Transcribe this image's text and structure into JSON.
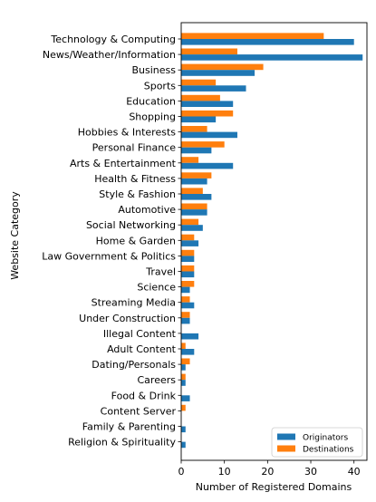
{
  "chart_data": {
    "type": "bar",
    "orientation": "horizontal",
    "xlabel": "Number of Registered Domains",
    "ylabel": "Website Category",
    "xlim": [
      0,
      43
    ],
    "xticks": [
      0,
      10,
      20,
      30,
      40
    ],
    "grid": false,
    "legend": {
      "position": "lower right"
    },
    "categories": [
      "Technology & Computing",
      "News/Weather/Information",
      "Business",
      "Sports",
      "Education",
      "Shopping",
      "Hobbies & Interests",
      "Personal Finance",
      "Arts & Entertainment",
      "Health & Fitness",
      "Style & Fashion",
      "Automotive",
      "Social Networking",
      "Home & Garden",
      "Law Government & Politics",
      "Travel",
      "Science",
      "Streaming Media",
      "Under Construction",
      "Illegal Content",
      "Adult Content",
      "Dating/Personals",
      "Careers",
      "Food & Drink",
      "Content Server",
      "Family & Parenting",
      "Religion & Spirituality"
    ],
    "series": [
      {
        "name": "Originators",
        "color": "#1f77b4",
        "values": [
          40,
          42,
          17,
          15,
          12,
          8,
          13,
          7,
          12,
          6,
          7,
          6,
          5,
          4,
          3,
          3,
          2,
          3,
          2,
          4,
          3,
          1,
          1,
          2,
          0,
          1,
          1
        ]
      },
      {
        "name": "Destinations",
        "color": "#ff7f0e",
        "values": [
          33,
          13,
          19,
          8,
          9,
          12,
          6,
          10,
          4,
          7,
          5,
          6,
          4,
          3,
          3,
          3,
          3,
          2,
          2,
          0,
          1,
          2,
          1,
          0,
          1,
          0,
          0
        ]
      }
    ]
  }
}
